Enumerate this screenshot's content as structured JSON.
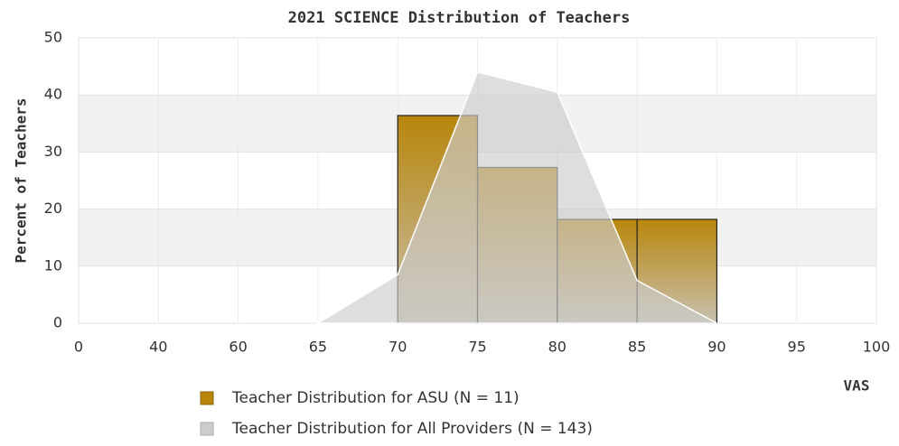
{
  "chart_data": {
    "type": "histogram",
    "title": "2021 SCIENCE Distribution of Teachers",
    "x_label": "VAS",
    "y_label": "Percent of Teachers",
    "bins": [
      70,
      75,
      80,
      85,
      90
    ],
    "series": [
      {
        "name": "Teacher Distribution for ASU (N = 11)",
        "color": "#b8860b",
        "values": [
          36.4,
          27.3,
          18.2,
          18.2
        ]
      },
      {
        "name": "Teacher Distribution for All Providers (N = 143)",
        "color": "#cccccc",
        "type": "area",
        "x": [
          65,
          70,
          75,
          80,
          85,
          90
        ],
        "values": [
          0,
          8.5,
          44,
          40.5,
          7.5,
          0
        ]
      }
    ],
    "xlim": [
      0,
      100
    ],
    "xticks": [
      0,
      40,
      60,
      65,
      70,
      75,
      80,
      85,
      90,
      95,
      100
    ],
    "ylim": [
      0,
      50
    ],
    "yticks": [
      0,
      10,
      20,
      30,
      40,
      50
    ],
    "grid": true,
    "legend": "bottom"
  }
}
